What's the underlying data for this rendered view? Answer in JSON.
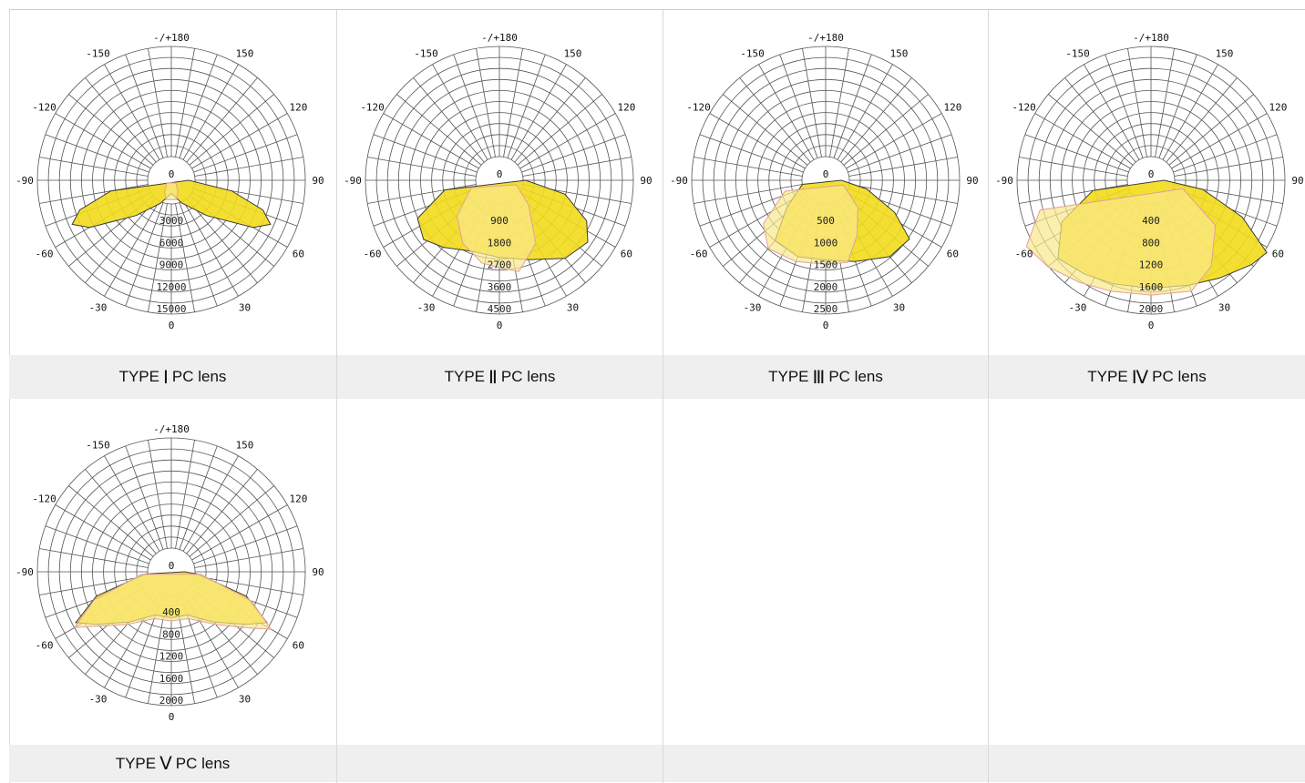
{
  "chart_data": [
    {
      "type": "polar",
      "caption": {
        "prefix": "TYPE",
        "roman": "Ⅰ",
        "suffix": "PC lens"
      },
      "angle_labels": [
        "-/+180",
        "150",
        "120",
        "90",
        "60",
        "30",
        "0",
        "-30",
        "-60",
        "-90",
        "-120",
        "-150"
      ],
      "center_label": "0",
      "ring_labels": [
        "3000",
        "6000",
        "9000",
        "12000",
        "15000"
      ],
      "rmax": 15000,
      "series": [
        {
          "color": "#f2dc1c",
          "points": [
            [
              0,
              1500
            ],
            [
              25,
              2900
            ],
            [
              45,
              5700
            ],
            [
              60,
              10800
            ],
            [
              66,
              12400
            ],
            [
              72,
              11000
            ],
            [
              80,
              7000
            ],
            [
              90,
              2000
            ],
            [
              -80,
              7000
            ],
            [
              -72,
              11000
            ],
            [
              -66,
              12400
            ],
            [
              -60,
              10800
            ],
            [
              -45,
              5700
            ],
            [
              -25,
              2900
            ]
          ]
        },
        {
          "color": "#f9e88a",
          "points": [
            [
              0,
              2200
            ],
            [
              15,
              2300
            ],
            [
              30,
              1500
            ],
            [
              60,
              600
            ],
            [
              -60,
              600
            ],
            [
              -30,
              1500
            ],
            [
              -15,
              2300
            ]
          ]
        }
      ]
    },
    {
      "type": "polar",
      "caption": {
        "prefix": "TYPE",
        "roman": "Ⅱ",
        "suffix": "PC lens"
      },
      "angle_labels": [
        "-/+180",
        "150",
        "120",
        "90",
        "60",
        "30",
        "0",
        "-30",
        "-60",
        "-90",
        "-120",
        "-150"
      ],
      "center_label": "0",
      "ring_labels": [
        "900",
        "1800",
        "2700",
        "3600",
        "4500"
      ],
      "rmax": 4500,
      "series": [
        {
          "color": "#f2dc1c",
          "points": [
            [
              0,
              2650
            ],
            [
              20,
              2900
            ],
            [
              40,
              3500
            ],
            [
              55,
              3700
            ],
            [
              65,
              3300
            ],
            [
              78,
              2300
            ],
            [
              90,
              900
            ],
            [
              -80,
              1900
            ],
            [
              -65,
              3100
            ],
            [
              -52,
              3300
            ],
            [
              -40,
              3000
            ],
            [
              -20,
              2600
            ]
          ]
        },
        {
          "color": "#f9e88a",
          "points": [
            [
              0,
              3000
            ],
            [
              12,
              3200
            ],
            [
              30,
              2500
            ],
            [
              50,
              1300
            ],
            [
              75,
              600
            ],
            [
              -75,
              1000
            ],
            [
              -50,
              1900
            ],
            [
              -30,
              2500
            ],
            [
              -12,
              2900
            ]
          ]
        }
      ]
    },
    {
      "type": "polar",
      "caption": {
        "prefix": "TYPE",
        "roman": "Ⅲ",
        "suffix": "PC lens"
      },
      "angle_labels": [
        "-/+180",
        "150",
        "120",
        "90",
        "60",
        "30",
        "0",
        "-30",
        "-60",
        "-90",
        "-120",
        "-150"
      ],
      "center_label": "0",
      "ring_labels": [
        "500",
        "1000",
        "1500",
        "2000",
        "2500"
      ],
      "rmax": 2500,
      "series": [
        {
          "color": "#f2dc1c",
          "points": [
            [
              0,
              1520
            ],
            [
              20,
              1650
            ],
            [
              40,
              1900
            ],
            [
              55,
              1950
            ],
            [
              65,
              1450
            ],
            [
              78,
              800
            ],
            [
              90,
              300
            ],
            [
              -80,
              450
            ],
            [
              -55,
              900
            ],
            [
              -40,
              1500
            ],
            [
              -20,
              1550
            ]
          ]
        },
        {
          "color": "#f9e88a",
          "points": [
            [
              0,
              1600
            ],
            [
              15,
              1620
            ],
            [
              30,
              1200
            ],
            [
              50,
              800
            ],
            [
              75,
              350
            ],
            [
              -75,
              800
            ],
            [
              -55,
              1450
            ],
            [
              -40,
              1700
            ],
            [
              -20,
              1650
            ]
          ]
        }
      ]
    },
    {
      "type": "polar",
      "caption": {
        "prefix": "TYPE",
        "roman": "Ⅳ",
        "suffix": "PC lens"
      },
      "angle_labels": [
        "-/+180",
        "150",
        "120",
        "90",
        "60",
        "30",
        "0",
        "-30",
        "-60",
        "-90",
        "-120",
        "-150"
      ],
      "center_label": "0",
      "ring_labels": [
        "400",
        "800",
        "1200",
        "1600",
        "2000"
      ],
      "rmax": 2000,
      "series": [
        {
          "color": "#f2dc1c",
          "points": [
            [
              0,
              1650
            ],
            [
              20,
              1700
            ],
            [
              35,
              1820
            ],
            [
              50,
              2000
            ],
            [
              58,
              2080
            ],
            [
              68,
              1500
            ],
            [
              80,
              800
            ],
            [
              90,
              200
            ],
            [
              -80,
              900
            ],
            [
              -65,
              1500
            ],
            [
              -50,
              1850
            ],
            [
              -35,
              1750
            ],
            [
              -20,
              1680
            ]
          ]
        },
        {
          "color": "#f9e88a",
          "points": [
            [
              0,
              1750
            ],
            [
              20,
              1800
            ],
            [
              35,
              1600
            ],
            [
              55,
              1200
            ],
            [
              75,
              500
            ],
            [
              -75,
              1750
            ],
            [
              -62,
              2150
            ],
            [
              -50,
              2050
            ],
            [
              -35,
              1900
            ],
            [
              -20,
              1800
            ]
          ]
        }
      ]
    },
    {
      "type": "polar",
      "caption": {
        "prefix": "TYPE",
        "roman": "Ⅴ",
        "suffix": "PC lens"
      },
      "angle_labels": [
        "-/+180",
        "150",
        "120",
        "90",
        "60",
        "30",
        "0",
        "-30",
        "-60",
        "-90",
        "-120",
        "-150"
      ],
      "center_label": "0",
      "ring_labels": [
        "400",
        "800",
        "1200",
        "1600",
        "2000"
      ],
      "rmax": 2000,
      "series": [
        {
          "color": "#f2dc1c",
          "points": [
            [
              0,
              700
            ],
            [
              20,
              700
            ],
            [
              40,
              1000
            ],
            [
              55,
              1400
            ],
            [
              62,
              1650
            ],
            [
              72,
              1200
            ],
            [
              85,
              400
            ],
            [
              90,
              200
            ],
            [
              -85,
              400
            ],
            [
              -72,
              1200
            ],
            [
              -62,
              1650
            ],
            [
              -55,
              1400
            ],
            [
              -40,
              1000
            ],
            [
              -20,
              700
            ]
          ]
        },
        {
          "color": "#f9e88a",
          "points": [
            [
              0,
              750
            ],
            [
              20,
              760
            ],
            [
              40,
              1050
            ],
            [
              55,
              1500
            ],
            [
              60,
              1750
            ],
            [
              70,
              1300
            ],
            [
              85,
              450
            ],
            [
              -85,
              450
            ],
            [
              -70,
              1250
            ],
            [
              -60,
              1700
            ],
            [
              -55,
              1450
            ],
            [
              -40,
              1050
            ],
            [
              -20,
              760
            ]
          ]
        }
      ]
    }
  ]
}
